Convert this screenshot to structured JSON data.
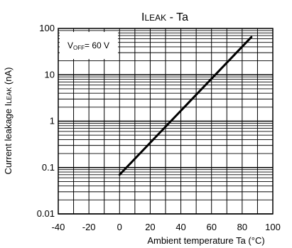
{
  "chart_data": {
    "type": "line",
    "title": {
      "main": "I",
      "main_sc": "LEAK",
      "suffix": " - Ta"
    },
    "xlabel": "Ambient temperature Ta (°C)",
    "ylabel": {
      "prefix": "Current leakage I",
      "sc": "LEAK",
      "suffix": " (nA)"
    },
    "annotation": {
      "prefix": "V",
      "sub": "OFF",
      "suffix": "= 60 V"
    },
    "xlim": [
      -40,
      100
    ],
    "ylim": [
      0.01,
      100
    ],
    "yscale": "log",
    "x_ticks": [
      -40,
      -20,
      0,
      20,
      40,
      60,
      80,
      100
    ],
    "y_ticks": [
      0.01,
      0.1,
      1,
      10,
      100
    ],
    "y_tick_labels": [
      "0.01",
      "0.1",
      "1",
      "10",
      "100"
    ],
    "grid": true,
    "series": [
      {
        "x": [
          0,
          86
        ],
        "y": [
          0.07,
          65
        ]
      }
    ]
  }
}
